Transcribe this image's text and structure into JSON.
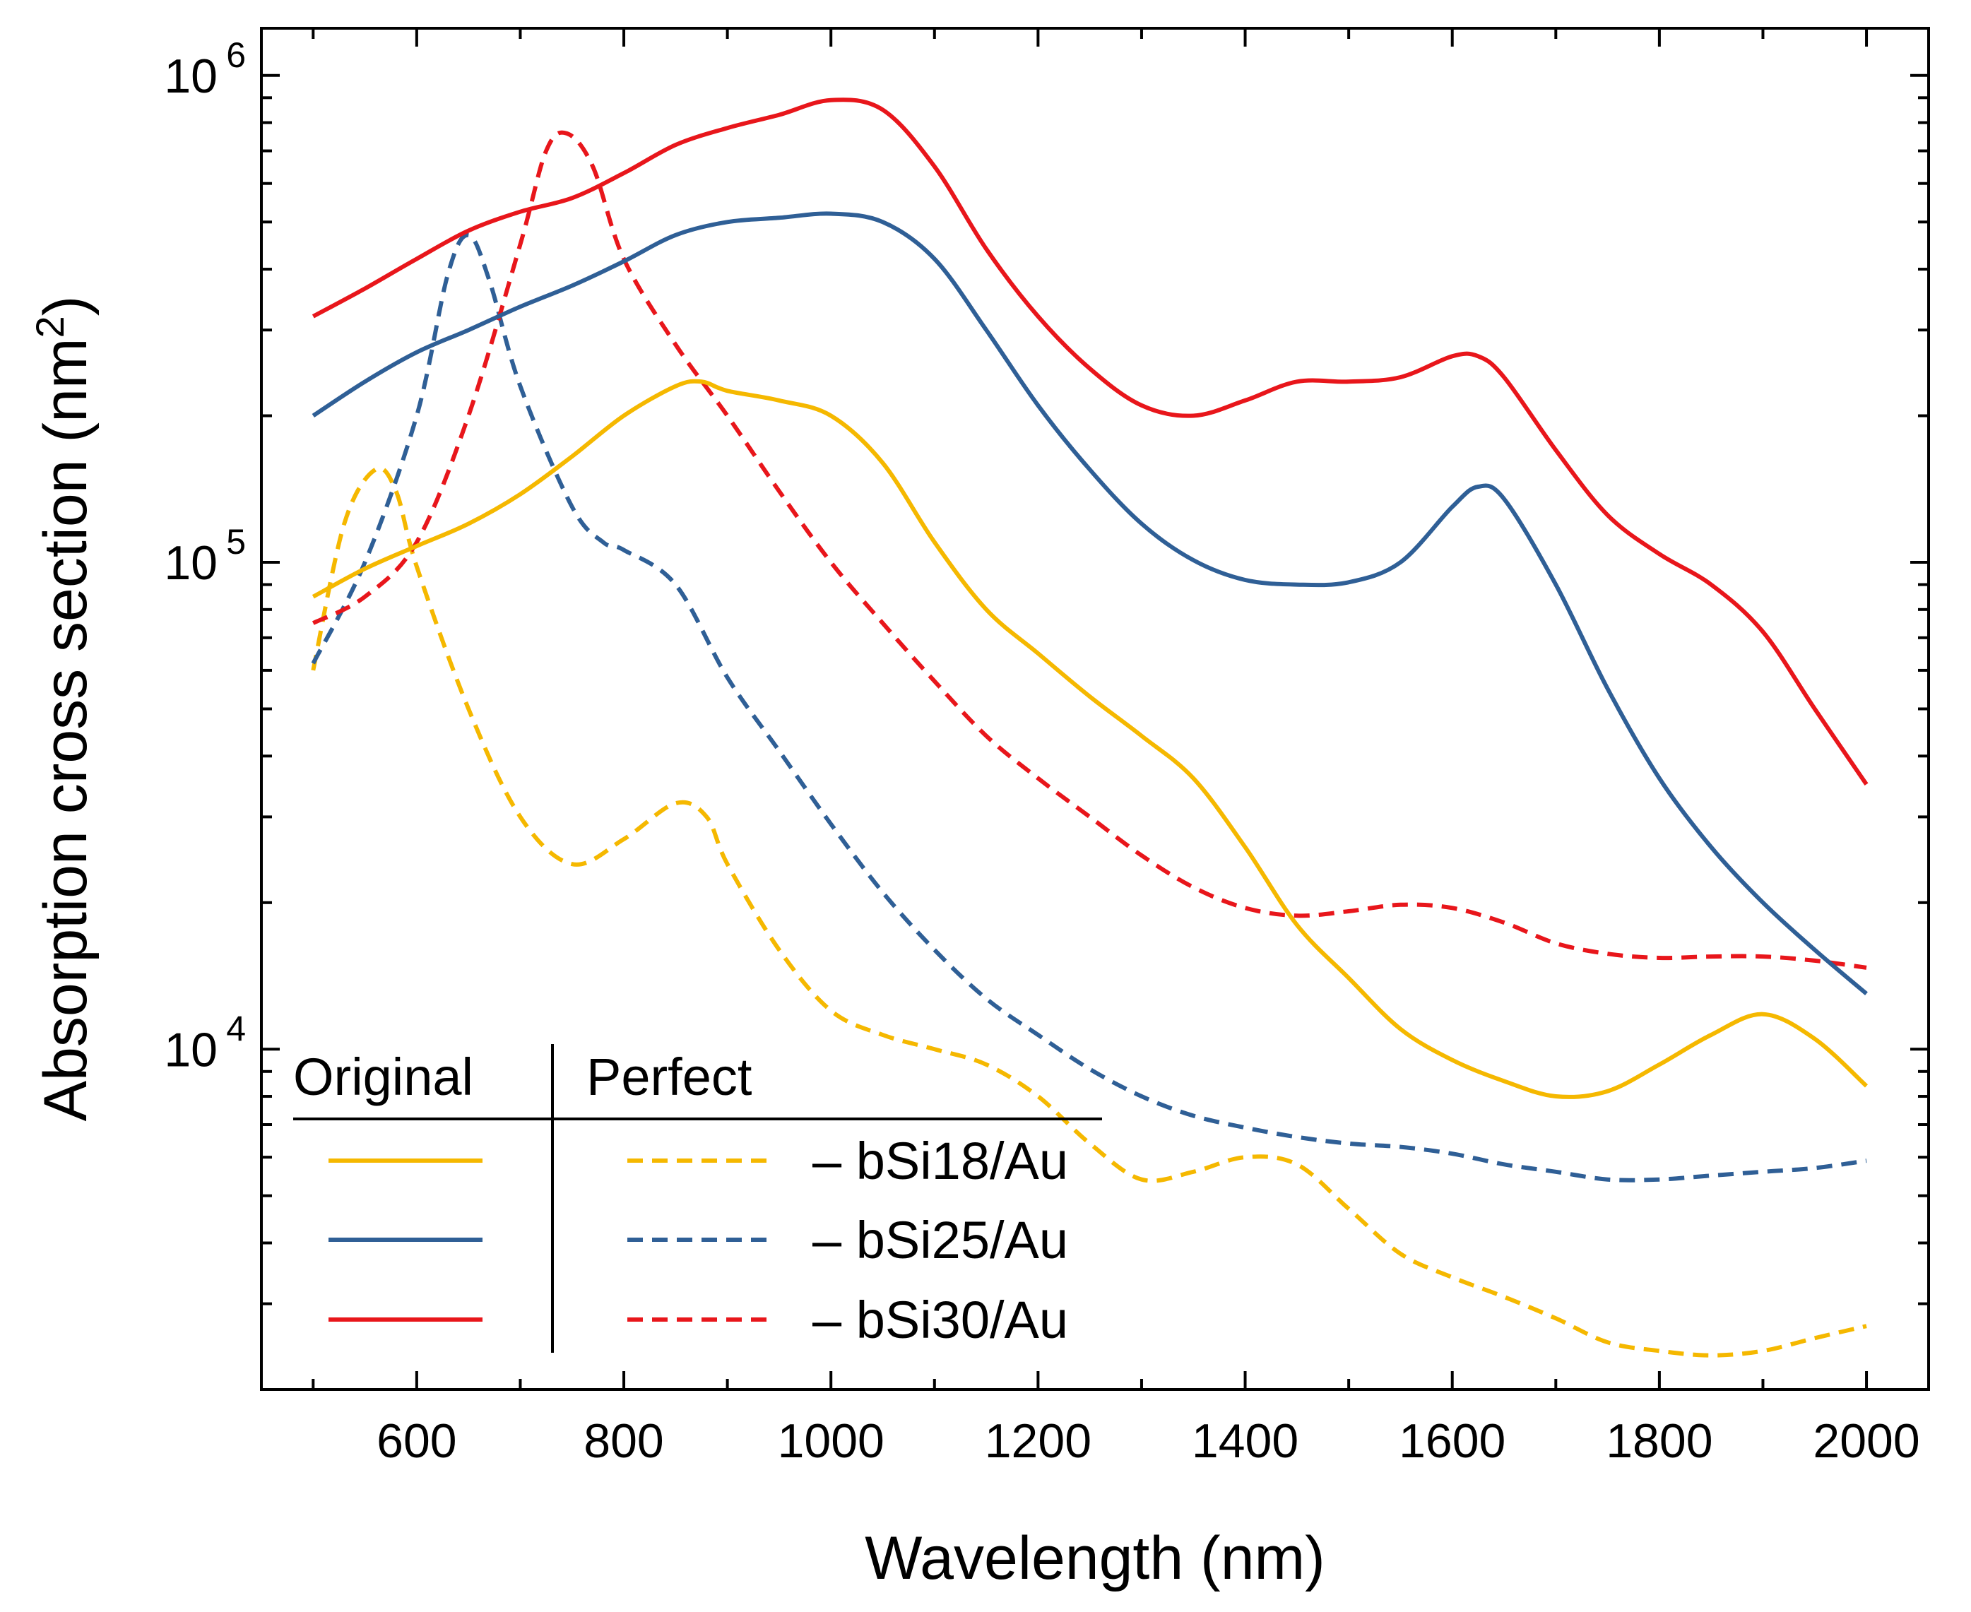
{
  "chart_data": {
    "type": "line",
    "xlabel": "Wavelength (nm)",
    "ylabel": "Absorption cross section (nm",
    "ylabel_sup": "2",
    "ylabel_end": ")",
    "xlim": [
      450,
      2060
    ],
    "ylim": [
      2000,
      1250000
    ],
    "yscale": "log",
    "x_ticks": [
      "600",
      "800",
      "1000",
      "1200",
      "1400",
      "1600",
      "1800",
      "2000"
    ],
    "x_tick_values": [
      600,
      800,
      1000,
      1200,
      1400,
      1600,
      1800,
      2000
    ],
    "y_ticks": [
      {
        "base": "10",
        "exp": "4",
        "value": 10000
      },
      {
        "base": "10",
        "exp": "5",
        "value": 100000
      },
      {
        "base": "10",
        "exp": "6",
        "value": 1000000
      }
    ],
    "legend": {
      "header_original": "Original",
      "header_perfect": "Perfect",
      "dash": "–",
      "placement": "bottom-left"
    },
    "series": [
      {
        "name": "bSi18/Au",
        "variant": "Original",
        "color": "#f5b800",
        "dashed": false,
        "x": [
          500,
          550,
          600,
          650,
          700,
          750,
          800,
          850,
          875,
          900,
          950,
          1000,
          1050,
          1100,
          1150,
          1200,
          1250,
          1300,
          1350,
          1400,
          1450,
          1500,
          1550,
          1600,
          1650,
          1700,
          1750,
          1800,
          1850,
          1900,
          1950,
          2000
        ],
        "y": [
          85000,
          97000,
          108000,
          120000,
          138000,
          165000,
          200000,
          230000,
          235000,
          225000,
          215000,
          200000,
          160000,
          110000,
          80000,
          65000,
          53000,
          44000,
          36000,
          26000,
          18000,
          14000,
          11000,
          9500,
          8600,
          8000,
          8200,
          9300,
          10700,
          11800,
          10500,
          8400
        ]
      },
      {
        "name": "bSi25/Au",
        "variant": "Original",
        "color": "#2f5f96",
        "dashed": false,
        "x": [
          500,
          550,
          600,
          650,
          700,
          750,
          800,
          850,
          900,
          950,
          1000,
          1050,
          1100,
          1150,
          1200,
          1250,
          1300,
          1350,
          1400,
          1450,
          1500,
          1550,
          1600,
          1625,
          1650,
          1700,
          1750,
          1800,
          1850,
          1900,
          1950,
          2000
        ],
        "y": [
          200000,
          235000,
          270000,
          300000,
          335000,
          370000,
          415000,
          470000,
          500000,
          510000,
          520000,
          500000,
          420000,
          300000,
          210000,
          155000,
          120000,
          101000,
          92000,
          90000,
          91000,
          100000,
          130000,
          143000,
          135000,
          90000,
          55000,
          36000,
          26000,
          20000,
          16000,
          13000
        ]
      },
      {
        "name": "bSi30/Au",
        "variant": "Original",
        "color": "#e8161b",
        "dashed": false,
        "x": [
          500,
          550,
          600,
          650,
          700,
          750,
          800,
          850,
          900,
          950,
          1000,
          1050,
          1100,
          1150,
          1200,
          1250,
          1300,
          1350,
          1400,
          1450,
          1500,
          1550,
          1600,
          1625,
          1650,
          1700,
          1750,
          1800,
          1850,
          1900,
          1950,
          2000
        ],
        "y": [
          320000,
          365000,
          420000,
          480000,
          525000,
          560000,
          630000,
          720000,
          780000,
          830000,
          890000,
          850000,
          650000,
          440000,
          320000,
          250000,
          210000,
          200000,
          215000,
          235000,
          235000,
          240000,
          265000,
          265000,
          240000,
          170000,
          125000,
          104000,
          90000,
          72000,
          50000,
          35000
        ]
      },
      {
        "name": "bSi18/Au",
        "variant": "Perfect",
        "color": "#f5b800",
        "dashed": true,
        "x": [
          500,
          530,
          560,
          580,
          600,
          650,
          700,
          750,
          800,
          850,
          880,
          900,
          950,
          1000,
          1050,
          1100,
          1150,
          1200,
          1250,
          1300,
          1350,
          1400,
          1450,
          1500,
          1550,
          1600,
          1650,
          1700,
          1750,
          1800,
          1850,
          1900,
          1950,
          2000
        ],
        "y": [
          60000,
          120000,
          155000,
          140000,
          98000,
          50000,
          30000,
          24000,
          27000,
          32000,
          30000,
          24000,
          16000,
          12000,
          10700,
          10000,
          9300,
          8000,
          6400,
          5400,
          5600,
          6000,
          5800,
          4700,
          3800,
          3400,
          3100,
          2800,
          2500,
          2400,
          2350,
          2400,
          2550,
          2700
        ]
      },
      {
        "name": "bSi25/Au",
        "variant": "Perfect",
        "color": "#2f5f96",
        "dashed": true,
        "x": [
          500,
          550,
          600,
          630,
          650,
          670,
          700,
          750,
          780,
          800,
          850,
          900,
          950,
          1000,
          1050,
          1100,
          1150,
          1200,
          1250,
          1300,
          1350,
          1400,
          1450,
          1500,
          1550,
          1600,
          1650,
          1700,
          1750,
          1800,
          1850,
          1900,
          1950,
          2000
        ],
        "y": [
          62000,
          100000,
          200000,
          390000,
          470000,
          380000,
          230000,
          130000,
          110000,
          106000,
          90000,
          58000,
          41000,
          29000,
          21000,
          16000,
          12700,
          10700,
          9100,
          8000,
          7300,
          6900,
          6600,
          6400,
          6300,
          6100,
          5800,
          5600,
          5400,
          5400,
          5500,
          5600,
          5700,
          5900
        ]
      },
      {
        "name": "bSi30/Au",
        "variant": "Perfect",
        "color": "#e8161b",
        "dashed": true,
        "x": [
          500,
          550,
          600,
          650,
          700,
          725,
          745,
          770,
          800,
          850,
          900,
          950,
          1000,
          1050,
          1100,
          1150,
          1200,
          1250,
          1300,
          1350,
          1400,
          1450,
          1500,
          1550,
          1600,
          1650,
          1700,
          1750,
          1800,
          1850,
          1900,
          1950,
          2000
        ],
        "y": [
          75000,
          85000,
          110000,
          200000,
          450000,
          700000,
          760000,
          650000,
          420000,
          280000,
          200000,
          140000,
          100000,
          75000,
          57000,
          44000,
          36000,
          30000,
          25000,
          21500,
          19500,
          18800,
          19200,
          19800,
          19500,
          18200,
          16500,
          15700,
          15400,
          15500,
          15500,
          15200,
          14700
        ]
      }
    ]
  }
}
